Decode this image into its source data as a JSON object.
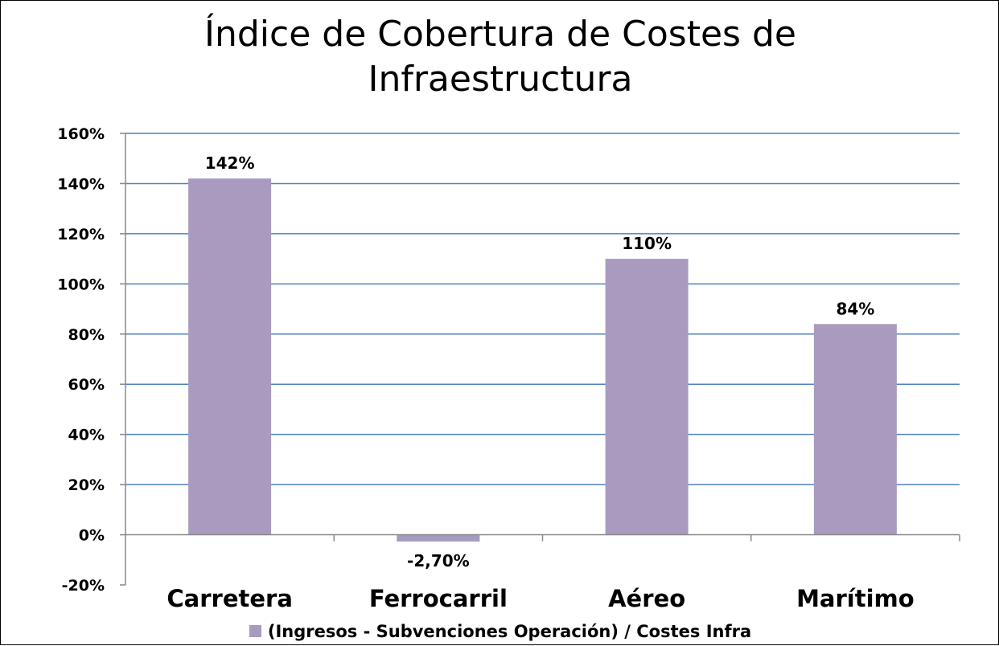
{
  "chart_data": {
    "type": "bar",
    "title_lines": [
      "Índice de Cobertura de Costes de",
      "Infraestructura"
    ],
    "categories": [
      "Carretera",
      "Ferrocarril",
      "Aéreo",
      "Marítimo"
    ],
    "series": [
      {
        "name": "(Ingresos - Subvenciones Operación) / Costes Infra",
        "values": [
          142,
          -2.7,
          110,
          84
        ],
        "labels": [
          "142%",
          "-2,70%",
          "110%",
          "84%"
        ],
        "color": "#a89bbf"
      }
    ],
    "y_ticks": [
      "160%",
      "140%",
      "120%",
      "100%",
      "80%",
      "60%",
      "40%",
      "20%",
      "0%",
      "-20%"
    ],
    "ylim": [
      -20,
      160
    ],
    "y_unit": "%",
    "grid": true,
    "gridline_color": "#4f81bd",
    "legend_position": "bottom"
  }
}
